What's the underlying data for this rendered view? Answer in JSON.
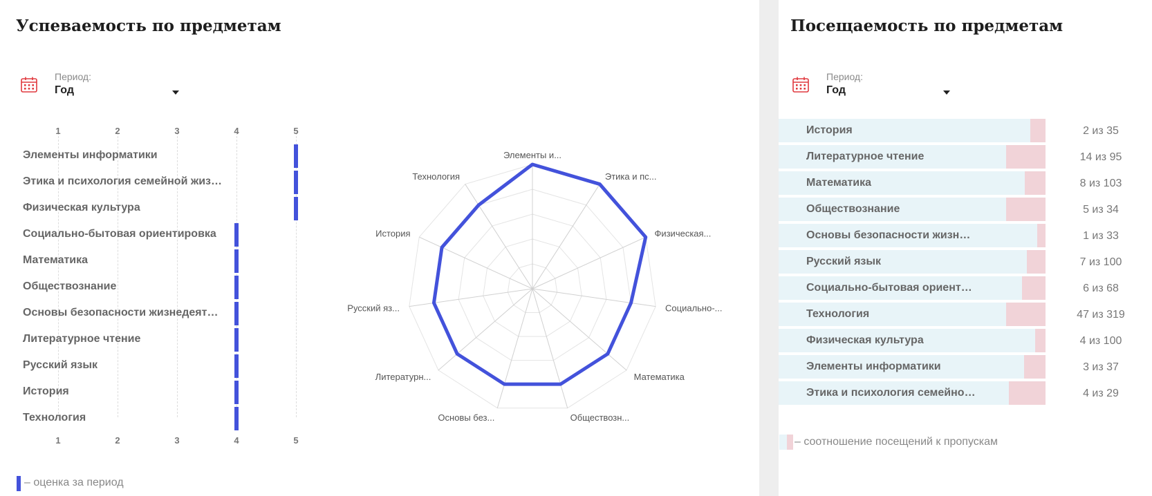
{
  "grades": {
    "title": "Успеваемость по предметам",
    "period_label": "Период:",
    "period_value": "Год",
    "ticks": [
      "1",
      "2",
      "3",
      "4",
      "5"
    ],
    "subjects": [
      {
        "name": "Элементы информатики",
        "grade": 5
      },
      {
        "name": "Этика и психология семейной жиз…",
        "grade": 5
      },
      {
        "name": "Физическая культура",
        "grade": 5
      },
      {
        "name": "Социально-бытовая ориентировка",
        "grade": 4
      },
      {
        "name": "Математика",
        "grade": 4
      },
      {
        "name": "Обществознание",
        "grade": 4
      },
      {
        "name": "Основы безопасности жизнедеяте…",
        "grade": 4
      },
      {
        "name": "Литературное чтение",
        "grade": 4
      },
      {
        "name": "Русский язык",
        "grade": 4
      },
      {
        "name": "История",
        "grade": 4
      },
      {
        "name": "Технология",
        "grade": 4
      }
    ],
    "legend": "– оценка за период",
    "bar_color": "#4352db"
  },
  "radar": {
    "labels": [
      "Элементы и...",
      "Этика и пс...",
      "Физическая...",
      "Социально-...",
      "Математика",
      "Обществозн...",
      "Основы без...",
      "Литературн...",
      "Русский яз...",
      "История",
      "Технология"
    ],
    "values": [
      5,
      5,
      5,
      4,
      4,
      4,
      4,
      4,
      4,
      4,
      4
    ],
    "max": 5,
    "line_color": "#4352db"
  },
  "attendance": {
    "title": "Посещаемость по предметам",
    "period_label": "Период:",
    "period_value": "Год",
    "rows": [
      {
        "name": "История",
        "missed": 2,
        "total": 35,
        "count": "2 из 35"
      },
      {
        "name": "Литературное чтение",
        "missed": 14,
        "total": 95,
        "count": "14 из 95"
      },
      {
        "name": "Математика",
        "missed": 8,
        "total": 103,
        "count": "8 из 103"
      },
      {
        "name": "Обществознание",
        "missed": 5,
        "total": 34,
        "count": "5 из 34"
      },
      {
        "name": "Основы безопасности жизне…",
        "missed": 1,
        "total": 33,
        "count": "1 из 33"
      },
      {
        "name": "Русский язык",
        "missed": 7,
        "total": 100,
        "count": "7 из 100"
      },
      {
        "name": "Социально-бытовая ориенти…",
        "missed": 6,
        "total": 68,
        "count": "6 из 68"
      },
      {
        "name": "Технология",
        "missed": 47,
        "total": 319,
        "count": "47 из 319"
      },
      {
        "name": "Физическая культура",
        "missed": 4,
        "total": 100,
        "count": "4 из 100"
      },
      {
        "name": "Элементы информатики",
        "missed": 3,
        "total": 37,
        "count": "3 из 37"
      },
      {
        "name": "Этика и психология семейно…",
        "missed": 4,
        "total": 29,
        "count": "4 из 29"
      }
    ],
    "legend": "– соотношение посещений к пропускам",
    "present_color": "#e8f4f8",
    "missed_color": "#f1d3d8"
  },
  "icons": {
    "calendar": "calendar-icon",
    "dropdown": "chevron-down-icon"
  }
}
